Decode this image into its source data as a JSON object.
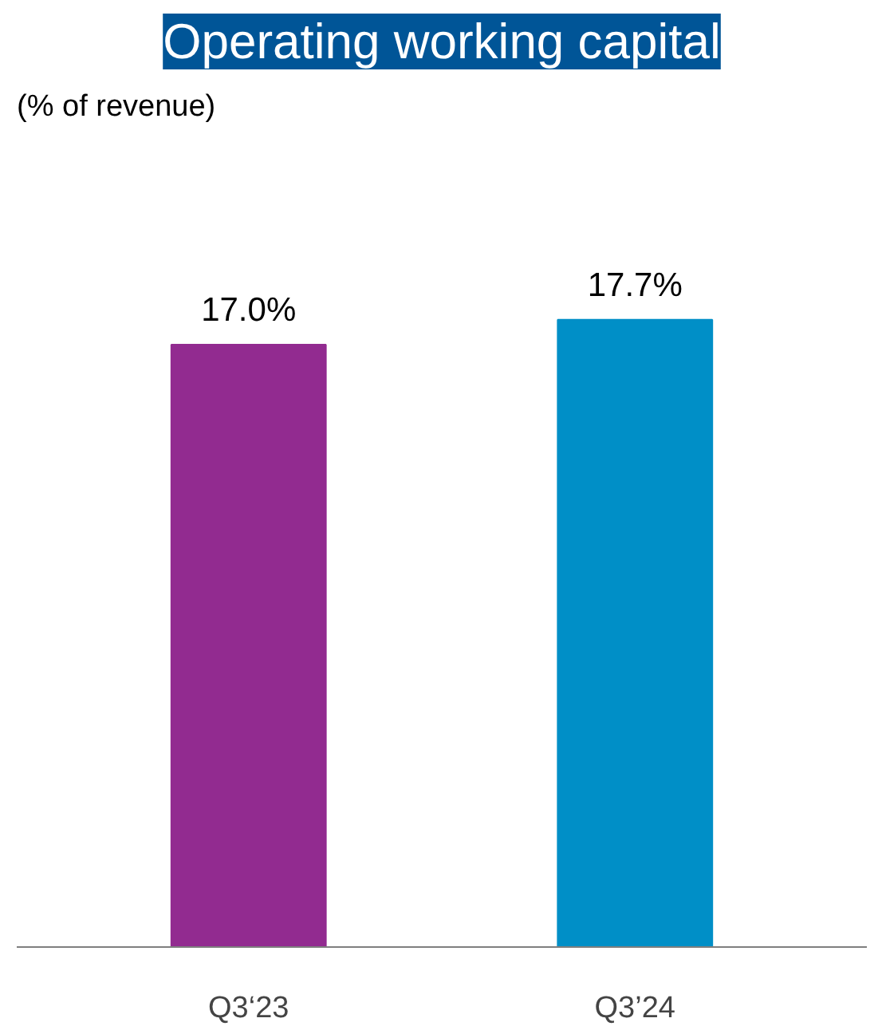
{
  "chart_data": {
    "type": "bar",
    "title": "Operating working capital",
    "subtitle": "(% of revenue)",
    "categories": [
      "Q3‘23",
      "Q3’24"
    ],
    "values": [
      17.0,
      17.7
    ],
    "value_labels": [
      "17.0%",
      "17.7%"
    ],
    "colors": [
      "#922b90",
      "#008fc7"
    ],
    "grid": false
  }
}
